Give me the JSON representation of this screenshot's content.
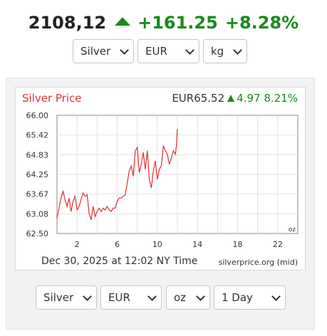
{
  "ticker": {
    "price": "2108,12",
    "change": "+161.25",
    "percent": "+8.28%",
    "up_color": "#1a8a1a"
  },
  "top_selects": {
    "metal": "Silver",
    "currency": "EUR",
    "unit": "kg"
  },
  "chart_header": {
    "title": "Silver Price",
    "price": "EUR65.52",
    "change": "4.97",
    "percent": "8.21%"
  },
  "chart_footer": {
    "timestamp": "Dec 30, 2025 at 12:02 NY Time",
    "source": "silverprice.org (mid)"
  },
  "bottom_selects": {
    "metal": "Silver",
    "currency": "EUR",
    "unit": "oz",
    "range": "1 Day"
  },
  "chart_data": {
    "type": "line",
    "unit_label": "oz",
    "y_ticks": [
      "66.00",
      "65.42",
      "64.83",
      "64.25",
      "63.67",
      "63.08",
      "62.50"
    ],
    "x_ticks": [
      "2",
      "6",
      "10",
      "14",
      "18",
      "22"
    ],
    "xlim": [
      0,
      24
    ],
    "ylim": [
      62.5,
      66.0
    ],
    "line_color": "#e03030",
    "series": [
      {
        "x": [
          0.0,
          0.2,
          0.4,
          0.6,
          0.8,
          1.0,
          1.2,
          1.4,
          1.6,
          1.8,
          2.0,
          2.2,
          2.4,
          2.6,
          2.8,
          3.0,
          3.2,
          3.4,
          3.6,
          3.8,
          4.0,
          4.2,
          4.4,
          4.6,
          4.8,
          5.0,
          5.2,
          5.4,
          5.6,
          5.8,
          6.0,
          6.2,
          6.4,
          6.6,
          6.8,
          7.0,
          7.2,
          7.4,
          7.6,
          7.8,
          8.0,
          8.2,
          8.4,
          8.6,
          8.8,
          9.0,
          9.2,
          9.4,
          9.6,
          9.8,
          10.0,
          10.2,
          10.4,
          10.6,
          10.8,
          11.0,
          11.2,
          11.4,
          11.6,
          11.8,
          11.9,
          12.0
        ],
        "y": [
          62.95,
          63.25,
          63.55,
          63.75,
          63.5,
          63.3,
          63.55,
          63.15,
          63.45,
          63.6,
          63.2,
          63.3,
          63.5,
          63.7,
          63.6,
          63.65,
          63.1,
          62.9,
          63.3,
          63.0,
          63.15,
          63.25,
          63.15,
          63.25,
          63.2,
          63.3,
          63.2,
          63.15,
          63.25,
          63.25,
          63.45,
          63.55,
          63.55,
          63.6,
          63.65,
          64.0,
          64.35,
          64.5,
          64.2,
          64.95,
          65.05,
          64.3,
          64.55,
          64.9,
          64.4,
          64.95,
          64.1,
          63.85,
          64.35,
          64.65,
          64.1,
          64.4,
          64.5,
          65.1,
          64.95,
          64.85,
          64.55,
          64.75,
          64.95,
          64.85,
          65.1,
          65.6
        ]
      }
    ]
  }
}
